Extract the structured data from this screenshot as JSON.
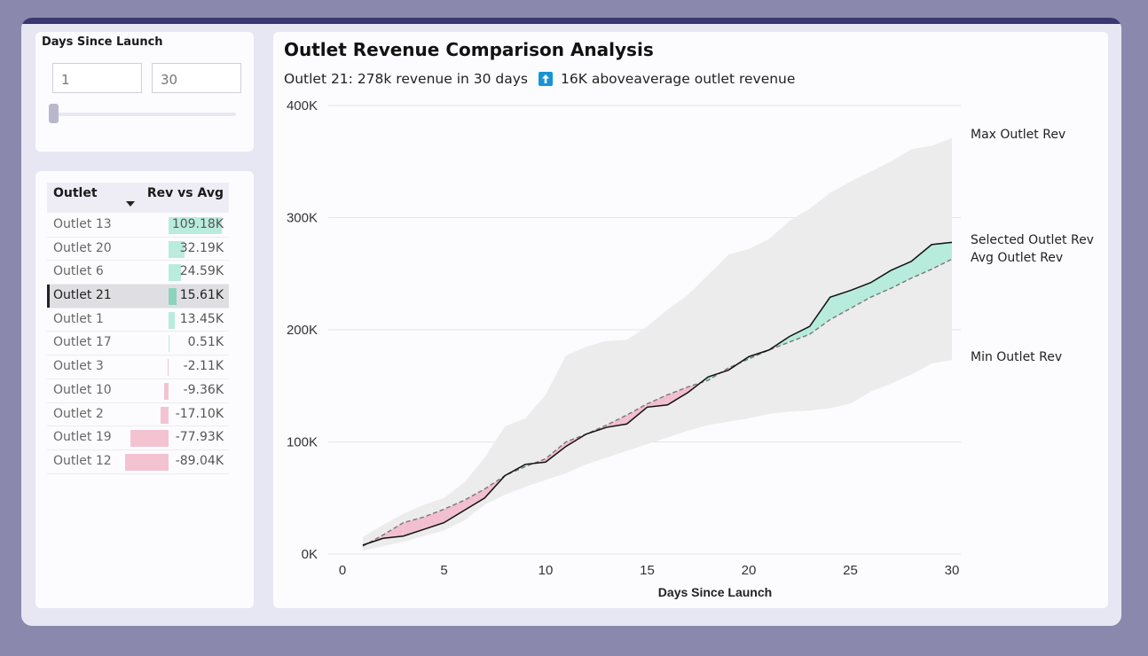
{
  "slicer": {
    "title": "Days Since Launch",
    "min_value": "1",
    "max_value": "30"
  },
  "table": {
    "headers": {
      "outlet": "Outlet",
      "rev_vs_avg": "Rev vs Avg"
    },
    "selected": "Outlet 21",
    "rows": [
      {
        "name": "Outlet 13",
        "value": 109.18,
        "label": "109.18K"
      },
      {
        "name": "Outlet 20",
        "value": 32.19,
        "label": "32.19K"
      },
      {
        "name": "Outlet 6",
        "value": 24.59,
        "label": "24.59K"
      },
      {
        "name": "Outlet 21",
        "value": 15.61,
        "label": "15.61K"
      },
      {
        "name": "Outlet 1",
        "value": 13.45,
        "label": "13.45K"
      },
      {
        "name": "Outlet 17",
        "value": 0.51,
        "label": "0.51K"
      },
      {
        "name": "Outlet 3",
        "value": -2.11,
        "label": "-2.11K"
      },
      {
        "name": "Outlet 10",
        "value": -9.36,
        "label": "-9.36K"
      },
      {
        "name": "Outlet 2",
        "value": -17.1,
        "label": "-17.10K"
      },
      {
        "name": "Outlet 19",
        "value": -77.93,
        "label": "-77.93K"
      },
      {
        "name": "Outlet 12",
        "value": -89.04,
        "label": "-89.04K"
      }
    ]
  },
  "main": {
    "title": "Outlet Revenue Comparison Analysis",
    "subtitle_prefix": "Outlet 21: 278k revenue in 30 days",
    "subtitle_suffix": "16K aboveaverage outlet revenue",
    "legend": {
      "max": "Max Outlet Rev",
      "selected": "Selected Outlet Rev",
      "avg": "Avg Outlet Rev",
      "min": "Min Outlet Rev"
    }
  },
  "colors": {
    "above_fill": "#b7ebdb",
    "below_fill": "#f2bfd0",
    "band_fill": "#ececec",
    "selected_line": "#111111",
    "avg_line": "#777777",
    "grid": "#e4e4e4"
  },
  "chart_data": {
    "type": "area",
    "title": "Outlet Revenue Comparison Analysis",
    "xlabel": "Days Since Launch",
    "ylabel": "",
    "xlim": [
      0,
      30
    ],
    "ylim": [
      0,
      400
    ],
    "x_ticks": [
      0,
      5,
      10,
      15,
      20,
      25,
      30
    ],
    "y_ticks": [
      0,
      100,
      200,
      300,
      400
    ],
    "y_tick_labels": [
      "0K",
      "100K",
      "200K",
      "300K",
      "400K"
    ],
    "grid": true,
    "units": "K",
    "x": [
      1,
      2,
      3,
      4,
      5,
      6,
      7,
      8,
      9,
      10,
      11,
      12,
      13,
      14,
      15,
      16,
      17,
      18,
      19,
      20,
      21,
      22,
      23,
      24,
      25,
      26,
      27,
      28,
      29,
      30
    ],
    "series": [
      {
        "name": "Max Outlet Rev",
        "values": [
          15,
          26,
          36,
          44,
          50,
          64,
          86,
          114,
          121,
          142,
          177,
          185,
          190,
          191,
          203,
          218,
          231,
          249,
          267,
          272,
          281,
          297,
          308,
          322,
          332,
          341,
          350,
          361,
          364,
          371
        ]
      },
      {
        "name": "Min Outlet Rev",
        "values": [
          3,
          7,
          11,
          16,
          21,
          30,
          44,
          53,
          60,
          66,
          72,
          80,
          86,
          92,
          98,
          104,
          110,
          115,
          118,
          121,
          125,
          127,
          128,
          130,
          134,
          145,
          152,
          160,
          170,
          173
        ]
      },
      {
        "name": "Selected Outlet Rev",
        "values": [
          8,
          14,
          16,
          22,
          28,
          39,
          50,
          70,
          80,
          82,
          96,
          107,
          113,
          116,
          131,
          133,
          144,
          158,
          164,
          176,
          182,
          194,
          203,
          229,
          235,
          242,
          253,
          261,
          276,
          278
        ]
      },
      {
        "name": "Avg Outlet Rev",
        "values": [
          7,
          17,
          28,
          33,
          40,
          48,
          58,
          70,
          78,
          85,
          100,
          107,
          115,
          124,
          134,
          142,
          149,
          155,
          166,
          174,
          182,
          189,
          196,
          209,
          219,
          229,
          237,
          246,
          254,
          263
        ]
      }
    ]
  }
}
